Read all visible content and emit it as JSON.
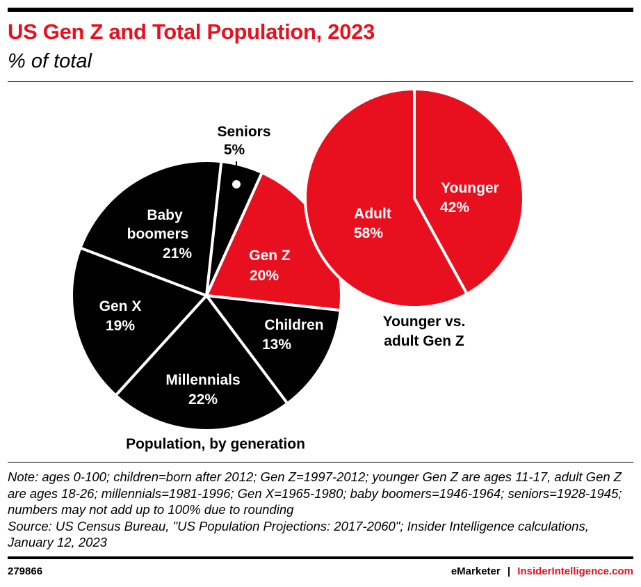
{
  "header": {
    "title": "US Gen Z and Total Population, 2023",
    "subtitle": "% of total"
  },
  "chart_data": [
    {
      "type": "pie",
      "title": "Population, by generation",
      "start_angle_deg": 6.3,
      "slices": [
        {
          "label": "Seniors",
          "value": 5,
          "display": "5%",
          "color": "#000000"
        },
        {
          "label": "Gen Z",
          "value": 20,
          "display": "20%",
          "color": "#e8101e"
        },
        {
          "label": "Children",
          "value": 13,
          "display": "13%",
          "color": "#000000"
        },
        {
          "label": "Millennials",
          "value": 22,
          "display": "22%",
          "color": "#000000"
        },
        {
          "label": "Gen X",
          "value": 19,
          "display": "19%",
          "color": "#000000"
        },
        {
          "label": "Baby boomers",
          "value": 21,
          "display": "21%",
          "color": "#000000"
        }
      ]
    },
    {
      "type": "pie",
      "title": "Younger vs. adult Gen Z",
      "start_angle_deg": 0,
      "slices": [
        {
          "label": "Younger",
          "value": 42,
          "display": "42%",
          "color": "#e8101e"
        },
        {
          "label": "Adult",
          "value": 58,
          "display": "58%",
          "color": "#e8101e"
        }
      ]
    }
  ],
  "labels": {
    "seniors": "Seniors",
    "baby1": "Baby",
    "baby2": "boomers",
    "genx": "Gen X",
    "millennials": "Millennials",
    "children": "Children",
    "genz": "Gen Z",
    "younger": "Younger",
    "adult": "Adult",
    "title2a": "Younger vs.",
    "title2b": "adult Gen Z"
  },
  "footer": {
    "note": "Note: ages 0-100; children=born after 2012; Gen Z=1997-2012; younger Gen Z are ages 11-17, adult Gen Z are ages 18-26; millennials=1981-1996; Gen X=1965-1980; baby boomers=1946-1964; seniors=1928-1945; numbers may not add up to 100% due to rounding",
    "source": "Source: US Census Bureau, \"US Population Projections: 2017-2060\"; Insider Intelligence calculations, January 12, 2023",
    "id": "279866",
    "brand1": "eMarketer",
    "sep": "|",
    "brand2": "InsiderIntelligence.com"
  }
}
